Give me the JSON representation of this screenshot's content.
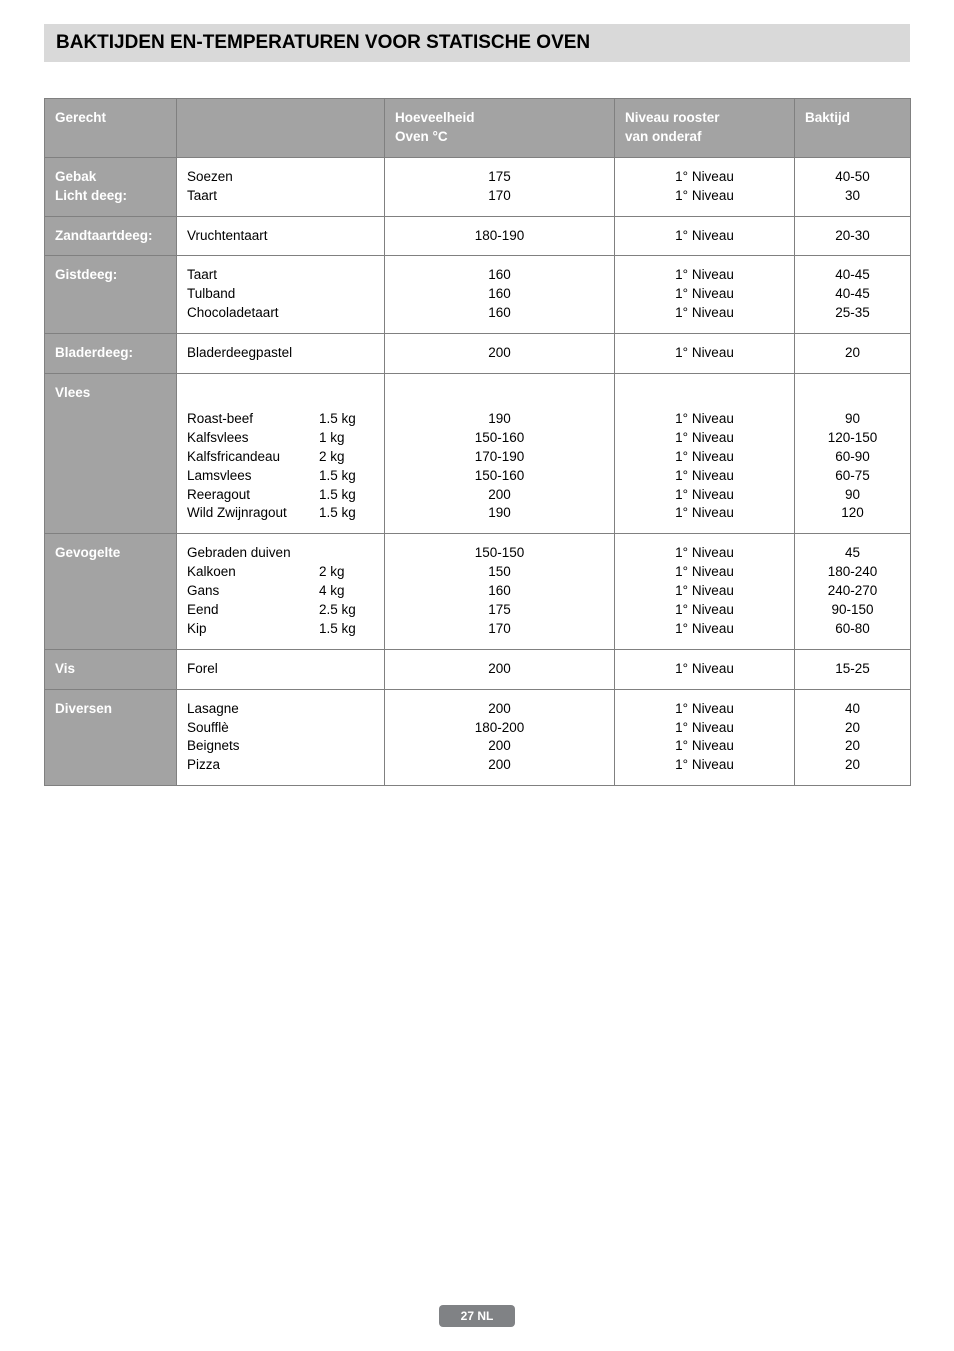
{
  "title": "BAKTIJDEN EN-TEMPERATUREN VOOR STATISCHE OVEN",
  "headers": {
    "gerecht": "Gerecht",
    "hoeveelheid_l1": "Hoeveelheid",
    "hoeveelheid_l2": "Oven °C",
    "niveau_l1": "Niveau rooster",
    "niveau_l2": "van onderaf",
    "baktijd": "Baktijd"
  },
  "rows": {
    "gebak": {
      "label_l1": "Gebak",
      "label_l2": "Licht deeg:",
      "dishes": [
        {
          "name": "Soezen",
          "temp": "175",
          "niveau": "1° Niveau",
          "tijd": "40-50"
        },
        {
          "name": "Taart",
          "temp": "170",
          "niveau": "1° Niveau",
          "tijd": "30"
        }
      ]
    },
    "zandtaart": {
      "label": "Zandtaartdeeg:",
      "dish": {
        "name": "Vruchtentaart",
        "temp": "180-190",
        "niveau": "1° Niveau",
        "tijd": "20-30"
      }
    },
    "gistdeeg": {
      "label": "Gistdeeg:",
      "dishes": [
        {
          "name": "Taart",
          "temp": "160",
          "niveau": "1° Niveau",
          "tijd": "40-45"
        },
        {
          "name": "Tulband",
          "temp": "160",
          "niveau": "1° Niveau",
          "tijd": "40-45"
        },
        {
          "name": "Chocoladetaart",
          "temp": "160",
          "niveau": "1° Niveau",
          "tijd": "25-35"
        }
      ]
    },
    "bladerdeeg": {
      "label": "Bladerdeeg:",
      "dish": {
        "name": "Bladerdeegpastel",
        "temp": "200",
        "niveau": "1° Niveau",
        "tijd": "20"
      }
    },
    "vlees": {
      "label": "Vlees",
      "dishes": [
        {
          "name": "Roast-beef",
          "wt": "1.5 kg",
          "temp": "190",
          "niveau": "1° Niveau",
          "tijd": "90"
        },
        {
          "name": "Kalfsvlees",
          "wt": "1 kg",
          "temp": "150-160",
          "niveau": "1° Niveau",
          "tijd": "120-150"
        },
        {
          "name": "Kalfsfricandeau",
          "wt": "2 kg",
          "temp": "170-190",
          "niveau": "1° Niveau",
          "tijd": "60-90"
        },
        {
          "name": "Lamsvlees",
          "wt": "1.5 kg",
          "temp": "150-160",
          "niveau": "1° Niveau",
          "tijd": "60-75"
        },
        {
          "name": "Reeragout",
          "wt": "1.5 kg",
          "temp": "200",
          "niveau": "1° Niveau",
          "tijd": "90"
        },
        {
          "name": "Wild Zwijnragout",
          "wt": "1.5 kg",
          "temp": "190",
          "niveau": "1° Niveau",
          "tijd": "120"
        }
      ]
    },
    "gevogelte": {
      "label": "Gevogelte",
      "dishes": [
        {
          "name": "Gebraden duiven",
          "wt": "",
          "temp": "150-150",
          "niveau": "1° Niveau",
          "tijd": "45"
        },
        {
          "name": "Kalkoen",
          "wt": "2 kg",
          "temp": "150",
          "niveau": "1° Niveau",
          "tijd": "180-240"
        },
        {
          "name": "Gans",
          "wt": "4 kg",
          "temp": "160",
          "niveau": "1° Niveau",
          "tijd": "240-270"
        },
        {
          "name": "Eend",
          "wt": "2.5 kg",
          "temp": "175",
          "niveau": "1° Niveau",
          "tijd": "90-150"
        },
        {
          "name": "Kip",
          "wt": "1.5 kg",
          "temp": "170",
          "niveau": "1° Niveau",
          "tijd": "60-80"
        }
      ]
    },
    "vis": {
      "label": "Vis",
      "dish": {
        "name": "Forel",
        "temp": "200",
        "niveau": "1° Niveau",
        "tijd": "15-25"
      }
    },
    "diversen": {
      "label": "Diversen",
      "dishes": [
        {
          "name": "Lasagne",
          "temp": "200",
          "niveau": "1° Niveau",
          "tijd": "40"
        },
        {
          "name": "Soufflè",
          "temp": "180-200",
          "niveau": "1° Niveau",
          "tijd": "20"
        },
        {
          "name": "Beignets",
          "temp": "200",
          "niveau": "1° Niveau",
          "tijd": "20"
        },
        {
          "name": "Pizza",
          "temp": "200",
          "niveau": "1° Niveau",
          "tijd": "20"
        }
      ]
    }
  },
  "footer": "27 NL"
}
